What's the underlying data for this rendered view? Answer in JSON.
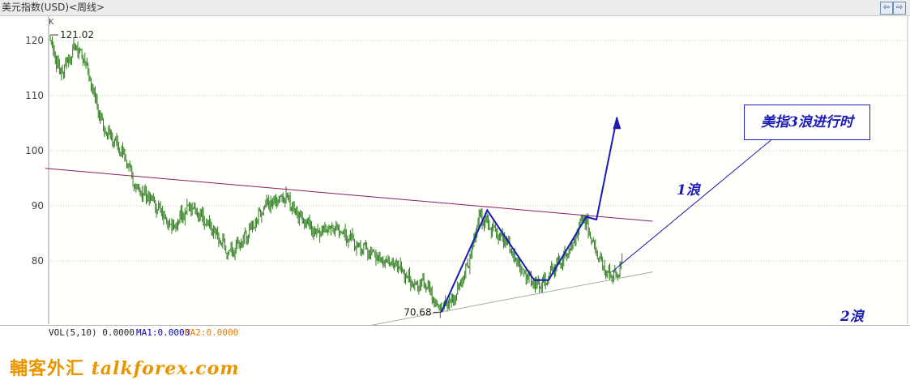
{
  "window": {
    "title": "美元指数(USD)<周线>",
    "buttons": [
      "⇦",
      "⇨",
      "▢"
    ]
  },
  "chart_data": {
    "type": "candlestick",
    "indicator_label": "K",
    "y_ticks": [
      120,
      110,
      100,
      90,
      80
    ],
    "ylim": [
      68,
      125
    ],
    "grid": true,
    "high_label": "121.02",
    "low_label": "70.68",
    "high": 121.02,
    "low": 70.68,
    "close_points": [
      {
        "i": 0,
        "v": 120
      },
      {
        "i": 10,
        "v": 114
      },
      {
        "i": 25,
        "v": 119
      },
      {
        "i": 35,
        "v": 116
      },
      {
        "i": 50,
        "v": 105
      },
      {
        "i": 70,
        "v": 100
      },
      {
        "i": 85,
        "v": 93
      },
      {
        "i": 100,
        "v": 91
      },
      {
        "i": 120,
        "v": 86
      },
      {
        "i": 135,
        "v": 90
      },
      {
        "i": 150,
        "v": 88
      },
      {
        "i": 165,
        "v": 84
      },
      {
        "i": 175,
        "v": 81
      },
      {
        "i": 190,
        "v": 84
      },
      {
        "i": 210,
        "v": 90
      },
      {
        "i": 230,
        "v": 92
      },
      {
        "i": 245,
        "v": 88
      },
      {
        "i": 260,
        "v": 85
      },
      {
        "i": 280,
        "v": 86
      },
      {
        "i": 300,
        "v": 83
      },
      {
        "i": 320,
        "v": 81
      },
      {
        "i": 340,
        "v": 79
      },
      {
        "i": 355,
        "v": 76
      },
      {
        "i": 370,
        "v": 76
      },
      {
        "i": 380,
        "v": 71
      },
      {
        "i": 395,
        "v": 73
      },
      {
        "i": 410,
        "v": 80
      },
      {
        "i": 420,
        "v": 88
      },
      {
        "i": 432,
        "v": 86
      },
      {
        "i": 445,
        "v": 84
      },
      {
        "i": 460,
        "v": 79
      },
      {
        "i": 480,
        "v": 75
      },
      {
        "i": 495,
        "v": 79
      },
      {
        "i": 510,
        "v": 82
      },
      {
        "i": 522,
        "v": 88
      },
      {
        "i": 535,
        "v": 82
      },
      {
        "i": 545,
        "v": 78
      },
      {
        "i": 555,
        "v": 77
      },
      {
        "i": 560,
        "v": 80
      }
    ],
    "annotations": {
      "wave1": "1浪",
      "wave2": "2浪",
      "wave3_note": "美指3浪进行时"
    },
    "lines": {
      "resistance": {
        "from": {
          "i": -5,
          "v": 96.8
        },
        "to": {
          "i": 590,
          "v": 87.2
        },
        "color": "#8b1a6b"
      },
      "support": {
        "from": {
          "i": 305,
          "v": 68
        },
        "to": {
          "i": 590,
          "v": 78
        },
        "color": "#a8a8a8"
      },
      "wave_path": [
        {
          "i": 383,
          "v": 70.68
        },
        {
          "i": 428,
          "v": 89.2
        },
        {
          "i": 474,
          "v": 76.5
        },
        {
          "i": 488,
          "v": 76.5
        },
        {
          "i": 525,
          "v": 88
        },
        {
          "i": 535,
          "v": 87.5
        },
        {
          "i": 555,
          "v": 106
        }
      ],
      "wave_color": "#1a1ab4",
      "candle_color": "#2e7d1e"
    }
  },
  "volume_bar": {
    "vol_label": "VOL(5,10) 0.0000",
    "ma1_label": "MA1:0.0000",
    "ma2_label": "MA2:0.0000",
    "ma1_color": "#0000c0",
    "ma2_color": "#e07b00"
  },
  "branding": {
    "cn": "輔客外汇",
    "url": "talkforex.com",
    "color": "#e89500"
  }
}
